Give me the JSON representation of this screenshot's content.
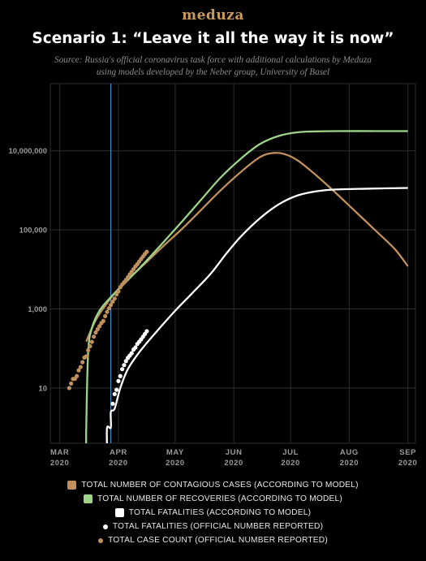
{
  "brand": "meduza",
  "title": "Scenario 1: “Leave it all the way it is now”",
  "source_line1": "Source: Russia's official coronavirus task force with additional calculations by Meduza",
  "source_line2": "using models developed by the Neber group, University of Basel",
  "colors": {
    "background": "#000000",
    "grid": "#2e2e2e",
    "contagious": "#c08f5e",
    "recoveries": "#9ed48a",
    "fatalities_model": "#ffffff",
    "fatalities_reported": "#ffffff",
    "cases_reported": "#c08f5e",
    "marker_line": "#4aa3d8"
  },
  "chart_data": {
    "type": "line",
    "y_scale": "log",
    "ylim": [
      0.4,
      500000000
    ],
    "xlim": [
      "2020-02-25",
      "2020-09-05"
    ],
    "x_ticks": [
      {
        "date": "2020-03-01",
        "label": "MAR\n2020"
      },
      {
        "date": "2020-04-01",
        "label": "APR\n2020"
      },
      {
        "date": "2020-05-01",
        "label": "MAY\n2020"
      },
      {
        "date": "2020-06-01",
        "label": "JUN\n2020"
      },
      {
        "date": "2020-07-01",
        "label": "JUL\n2020"
      },
      {
        "date": "2020-08-01",
        "label": "AUG\n2020"
      },
      {
        "date": "2020-09-01",
        "label": "SEP\n2020"
      }
    ],
    "y_ticks": [
      {
        "value": 10,
        "label": "10"
      },
      {
        "value": 1000,
        "label": "1,000"
      },
      {
        "value": 100000,
        "label": "100,000"
      },
      {
        "value": 10000000,
        "label": "10,000,000"
      }
    ],
    "vline_date": "2020-03-28",
    "series": [
      {
        "name": "TOTAL NUMBER OF CONTAGIOUS CASES (ACCORDING TO MODEL)",
        "kind": "line",
        "color_key": "contagious",
        "points": [
          [
            "2020-03-15",
            150
          ],
          [
            "2020-03-18",
            330
          ],
          [
            "2020-03-21",
            630
          ],
          [
            "2020-03-25",
            1200
          ],
          [
            "2020-03-30",
            2500
          ],
          [
            "2020-04-05",
            5000
          ],
          [
            "2020-04-15",
            14000
          ],
          [
            "2020-04-25",
            40000
          ],
          [
            "2020-05-05",
            110000
          ],
          [
            "2020-05-15",
            330000
          ],
          [
            "2020-05-25",
            1000000
          ],
          [
            "2020-06-05",
            3000000
          ],
          [
            "2020-06-15",
            7000000
          ],
          [
            "2020-06-22",
            8800000
          ],
          [
            "2020-06-28",
            8200000
          ],
          [
            "2020-07-05",
            5600000
          ],
          [
            "2020-07-15",
            2300000
          ],
          [
            "2020-07-25",
            850000
          ],
          [
            "2020-08-05",
            270000
          ],
          [
            "2020-08-15",
            95000
          ],
          [
            "2020-08-25",
            33000
          ],
          [
            "2020-09-01",
            12000
          ]
        ]
      },
      {
        "name": "TOTAL NUMBER OF RECOVERIES (ACCORDING TO MODEL)",
        "kind": "line",
        "color_key": "recoveries",
        "points": [
          [
            "2020-03-15",
            0.3
          ],
          [
            "2020-03-15",
            1
          ],
          [
            "2020-03-16",
            80
          ],
          [
            "2020-03-18",
            330
          ],
          [
            "2020-03-22",
            900
          ],
          [
            "2020-03-28",
            2000
          ],
          [
            "2020-04-05",
            4800
          ],
          [
            "2020-04-15",
            15000
          ],
          [
            "2020-04-25",
            50000
          ],
          [
            "2020-05-05",
            170000
          ],
          [
            "2020-05-15",
            600000
          ],
          [
            "2020-05-25",
            2100000
          ],
          [
            "2020-06-05",
            6500000
          ],
          [
            "2020-06-15",
            15000000
          ],
          [
            "2020-06-25",
            24000000
          ],
          [
            "2020-07-05",
            29500000
          ],
          [
            "2020-07-15",
            31000000
          ],
          [
            "2020-07-25",
            31500000
          ],
          [
            "2020-08-15",
            31500000
          ],
          [
            "2020-09-01",
            31500000
          ]
        ]
      },
      {
        "name": "TOTAL FATALITIES (ACCORDING TO MODEL)",
        "kind": "line",
        "color_key": "fatalities_model",
        "points": [
          [
            "2020-03-26",
            0.3
          ],
          [
            "2020-03-26",
            1
          ],
          [
            "2020-03-28",
            1
          ],
          [
            "2020-03-28",
            2.5
          ],
          [
            "2020-03-30",
            3
          ],
          [
            "2020-04-02",
            10
          ],
          [
            "2020-04-06",
            30
          ],
          [
            "2020-04-12",
            80
          ],
          [
            "2020-04-20",
            230
          ],
          [
            "2020-05-01",
            900
          ],
          [
            "2020-05-10",
            2500
          ],
          [
            "2020-05-20",
            8000
          ],
          [
            "2020-05-28",
            25000
          ],
          [
            "2020-06-05",
            70000
          ],
          [
            "2020-06-15",
            200000
          ],
          [
            "2020-06-25",
            450000
          ],
          [
            "2020-07-05",
            750000
          ],
          [
            "2020-07-15",
            950000
          ],
          [
            "2020-07-25",
            1050000
          ],
          [
            "2020-08-10",
            1100000
          ],
          [
            "2020-09-01",
            1150000
          ]
        ]
      },
      {
        "name": "TOTAL FATALITIES (OFFICIAL NUMBER REPORTED)",
        "kind": "dots",
        "color_key": "fatalities_reported",
        "points": [
          [
            "2020-03-29",
            4
          ],
          [
            "2020-03-30",
            7
          ],
          [
            "2020-03-31",
            9
          ],
          [
            "2020-04-01",
            15
          ],
          [
            "2020-04-02",
            20
          ],
          [
            "2020-04-03",
            30
          ],
          [
            "2020-04-04",
            38
          ],
          [
            "2020-04-05",
            48
          ],
          [
            "2020-04-06",
            58
          ],
          [
            "2020-04-07",
            66
          ],
          [
            "2020-04-08",
            76
          ],
          [
            "2020-04-09",
            94
          ],
          [
            "2020-04-10",
            106
          ],
          [
            "2020-04-11",
            130
          ],
          [
            "2020-04-12",
            148
          ],
          [
            "2020-04-13",
            170
          ],
          [
            "2020-04-14",
            198
          ],
          [
            "2020-04-15",
            232
          ],
          [
            "2020-04-16",
            273
          ]
        ]
      },
      {
        "name": "TOTAL CASE COUNT (OFFICIAL NUMBER REPORTED)",
        "kind": "dots",
        "color_key": "cases_reported",
        "points": [
          [
            "2020-03-06",
            10
          ],
          [
            "2020-03-07",
            13
          ],
          [
            "2020-03-08",
            17
          ],
          [
            "2020-03-09",
            17
          ],
          [
            "2020-03-10",
            20
          ],
          [
            "2020-03-11",
            28
          ],
          [
            "2020-03-12",
            34
          ],
          [
            "2020-03-13",
            45
          ],
          [
            "2020-03-14",
            59
          ],
          [
            "2020-03-15",
            63
          ],
          [
            "2020-03-16",
            90
          ],
          [
            "2020-03-17",
            114
          ],
          [
            "2020-03-18",
            147
          ],
          [
            "2020-03-19",
            199
          ],
          [
            "2020-03-20",
            253
          ],
          [
            "2020-03-21",
            306
          ],
          [
            "2020-03-22",
            367
          ],
          [
            "2020-03-23",
            438
          ],
          [
            "2020-03-24",
            495
          ],
          [
            "2020-03-25",
            658
          ],
          [
            "2020-03-26",
            840
          ],
          [
            "2020-03-27",
            1036
          ],
          [
            "2020-03-28",
            1264
          ],
          [
            "2020-03-29",
            1534
          ],
          [
            "2020-03-30",
            1836
          ],
          [
            "2020-03-31",
            2337
          ],
          [
            "2020-04-01",
            2777
          ],
          [
            "2020-04-02",
            3548
          ],
          [
            "2020-04-03",
            4149
          ],
          [
            "2020-04-04",
            4731
          ],
          [
            "2020-04-05",
            5389
          ],
          [
            "2020-04-06",
            6343
          ],
          [
            "2020-04-07",
            7497
          ],
          [
            "2020-04-08",
            8672
          ],
          [
            "2020-04-09",
            10131
          ],
          [
            "2020-04-10",
            11917
          ],
          [
            "2020-04-11",
            13584
          ],
          [
            "2020-04-12",
            15770
          ],
          [
            "2020-04-13",
            18328
          ],
          [
            "2020-04-14",
            21102
          ],
          [
            "2020-04-15",
            24490
          ],
          [
            "2020-04-16",
            27938
          ]
        ]
      }
    ],
    "legend": [
      {
        "label": "TOTAL NUMBER OF CONTAGIOUS CASES (ACCORDING TO MODEL)",
        "marker": "square",
        "color_key": "contagious"
      },
      {
        "label": "TOTAL NUMBER OF RECOVERIES (ACCORDING TO MODEL)",
        "marker": "square",
        "color_key": "recoveries"
      },
      {
        "label": "TOTAL FATALITIES (ACCORDING TO MODEL)",
        "marker": "square",
        "color_key": "fatalities_model"
      },
      {
        "label": "TOTAL FATALITIES (OFFICIAL NUMBER REPORTED)",
        "marker": "dot",
        "color_key": "fatalities_reported"
      },
      {
        "label": "TOTAL CASE COUNT (OFFICIAL NUMBER REPORTED)",
        "marker": "dot",
        "color_key": "cases_reported"
      }
    ],
    "legend_position": "bottom",
    "grid": true
  }
}
